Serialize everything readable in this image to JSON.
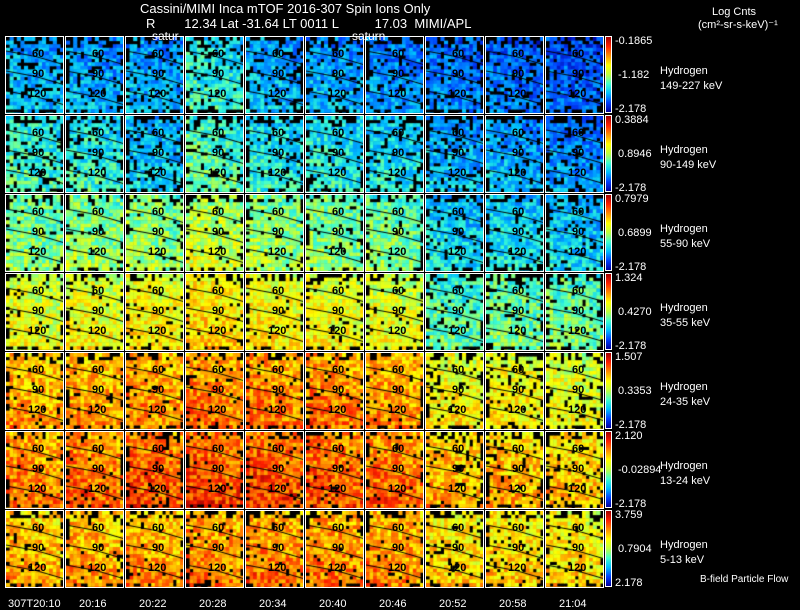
{
  "header": {
    "title": "Cassini/MIMI Inca mTOF  2016-307   Spin   Ions Only",
    "subtitle": "R        12.34 Lat -31.64 LT 0011 L          17.03  MIMI/APL",
    "units_line1": "Log Cnts",
    "units_line2": "(cm²-sr-s-keV)⁻¹",
    "overlay_labels": [
      "satur",
      "saturn"
    ]
  },
  "footer": {
    "legend": "B-field Particle Flow"
  },
  "chart_data": {
    "type": "heatmap",
    "title": "Cassini/MIMI Inca mTOF  2016-307   Spin   Ions Only",
    "x_tick_labels": [
      "307T20:10",
      "20:16",
      "20:22",
      "20:28",
      "20:34",
      "20:40",
      "20:46",
      "20:52",
      "20:58",
      "21:04"
    ],
    "contour_labels": [
      "60",
      "90",
      "120"
    ],
    "rows": [
      {
        "species": "Hydrogen",
        "energy": "149-227 keV",
        "cmax": "-0.1865",
        "cmid": "-1.182",
        "cmin": "-2.178",
        "levels": [
          0.3,
          0.28,
          0.28,
          0.4,
          0.3,
          0.28,
          0.25,
          0.22,
          0.2,
          0.18
        ]
      },
      {
        "species": "Hydrogen",
        "energy": "90-149 keV",
        "cmax": "0.3884",
        "cmid": "0.8946",
        "cmin": "-2.178",
        "levels": [
          0.42,
          0.4,
          0.33,
          0.45,
          0.38,
          0.38,
          0.36,
          0.3,
          0.28,
          0.25
        ]
      },
      {
        "species": "Hydrogen",
        "energy": "55-90 keV",
        "cmax": "0.7979",
        "cmid": "0.6899",
        "cmin": "-2.178",
        "levels": [
          0.5,
          0.52,
          0.52,
          0.58,
          0.52,
          0.5,
          0.48,
          0.35,
          0.35,
          0.33
        ]
      },
      {
        "species": "Hydrogen",
        "energy": "35-55 keV",
        "cmax": "1.324",
        "cmid": "0.4270",
        "cmin": "-2.178",
        "levels": [
          0.62,
          0.64,
          0.66,
          0.7,
          0.66,
          0.64,
          0.62,
          0.45,
          0.48,
          0.48
        ]
      },
      {
        "species": "Hydrogen",
        "energy": "24-35 keV",
        "cmax": "1.507",
        "cmid": "0.3353",
        "cmin": "-2.178",
        "levels": [
          0.76,
          0.76,
          0.78,
          0.8,
          0.8,
          0.8,
          0.78,
          0.66,
          0.66,
          0.62
        ]
      },
      {
        "species": "Hydrogen",
        "energy": "13-24 keV",
        "cmax": "2.120",
        "cmid": "-0.02894",
        "cmin": "-2.178",
        "levels": [
          0.8,
          0.82,
          0.84,
          0.86,
          0.86,
          0.84,
          0.82,
          0.74,
          0.74,
          0.72
        ]
      },
      {
        "species": "Hydrogen",
        "energy": "5-13 keV",
        "cmax": "3.759",
        "cmid": "0.7904",
        "cmin": "2.178",
        "levels": [
          0.74,
          0.76,
          0.77,
          0.79,
          0.8,
          0.79,
          0.78,
          0.7,
          0.7,
          0.68
        ]
      }
    ]
  }
}
